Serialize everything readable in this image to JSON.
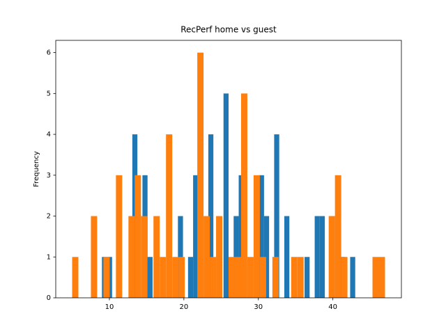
{
  "chart_data": {
    "type": "histogram",
    "title": "RecPerf home vs guest",
    "y_label": "Frequency",
    "series": [
      {
        "color": "#1f77b4",
        "bins": [
          9,
          9.68,
          10.36,
          11.04,
          11.72,
          12.4,
          13.08,
          13.76,
          14.44,
          15.12,
          15.8,
          16.48,
          17.16,
          17.84,
          18.52,
          19.2,
          19.88,
          20.56,
          21.24,
          21.92,
          22.6,
          23.28,
          23.96,
          24.64,
          25.32,
          26,
          26.68,
          27.36,
          28.04,
          28.72,
          29.4,
          30.08,
          30.76,
          31.44,
          32.12,
          32.8,
          33.48,
          34.16,
          34.84,
          35.52,
          36.2,
          36.88,
          37.56,
          38.24,
          38.92,
          39.6,
          40.28,
          40.96,
          41.64,
          42.32,
          43
        ],
        "counts": [
          1,
          1,
          0,
          0,
          0,
          0,
          4,
          0,
          3,
          1,
          0,
          0,
          0,
          0,
          0,
          2,
          0,
          1,
          3,
          3,
          0,
          4,
          0,
          0,
          5,
          0,
          2,
          3,
          0,
          0,
          0,
          3,
          2,
          0,
          4,
          0,
          2,
          0,
          0,
          0,
          1,
          0,
          2,
          2,
          0,
          2,
          0,
          1,
          0,
          1
        ]
      },
      {
        "color": "#ff7f0e",
        "bins": [
          5,
          5.84,
          6.68,
          7.52,
          8.36,
          9.2,
          10.04,
          10.88,
          11.72,
          12.56,
          13.4,
          14.24,
          15.08,
          15.92,
          16.76,
          17.6,
          18.44,
          19.28,
          20.12,
          20.96,
          21.8,
          22.64,
          23.48,
          24.32,
          25.16,
          26,
          26.84,
          27.68,
          28.52,
          29.36,
          30.2,
          31.04,
          31.88,
          32.72,
          33.56,
          34.4,
          35.24,
          36.08,
          36.92,
          37.76,
          38.6,
          39.44,
          40.28,
          41.12,
          41.96,
          42.8,
          43.64,
          44.48,
          45.32,
          46.16,
          47
        ],
        "counts": [
          1,
          0,
          0,
          2,
          0,
          1,
          0,
          3,
          0,
          2,
          3,
          2,
          0,
          2,
          1,
          4,
          1,
          1,
          0,
          0,
          6,
          2,
          1,
          2,
          0,
          1,
          1,
          5,
          1,
          3,
          1,
          0,
          1,
          0,
          0,
          1,
          1,
          0,
          0,
          0,
          0,
          2,
          3,
          1,
          0,
          0,
          0,
          0,
          1,
          1
        ]
      }
    ],
    "xlim": [
      2.8,
      49.2
    ],
    "xticks": [
      10,
      20,
      30,
      40
    ],
    "ylim": [
      0,
      6.3
    ],
    "yticks": [
      0,
      1,
      2,
      3,
      4,
      5,
      6
    ]
  }
}
